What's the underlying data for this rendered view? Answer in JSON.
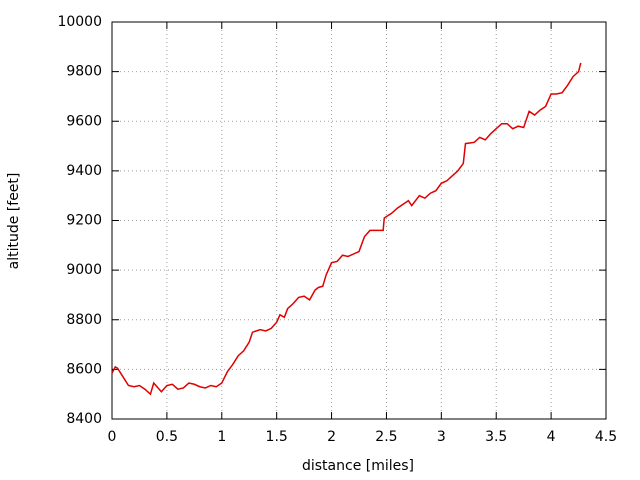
{
  "chart_data": {
    "type": "line",
    "x_label": "distance [miles]",
    "y_label": "altitude [feet]",
    "x": [
      0,
      0.03,
      0.05,
      0.1,
      0.15,
      0.2,
      0.25,
      0.3,
      0.35,
      0.38,
      0.4,
      0.45,
      0.5,
      0.55,
      0.6,
      0.65,
      0.7,
      0.75,
      0.8,
      0.85,
      0.9,
      0.95,
      1.0,
      1.05,
      1.1,
      1.15,
      1.2,
      1.25,
      1.28,
      1.35,
      1.4,
      1.45,
      1.5,
      1.53,
      1.57,
      1.6,
      1.65,
      1.7,
      1.75,
      1.8,
      1.85,
      1.88,
      1.92,
      1.95,
      2.0,
      2.05,
      2.1,
      2.15,
      2.2,
      2.25,
      2.3,
      2.35,
      2.4,
      2.47,
      2.48,
      2.55,
      2.6,
      2.65,
      2.7,
      2.73,
      2.8,
      2.85,
      2.9,
      2.95,
      3.0,
      3.05,
      3.1,
      3.15,
      3.2,
      3.22,
      3.3,
      3.35,
      3.4,
      3.45,
      3.5,
      3.55,
      3.6,
      3.65,
      3.7,
      3.75,
      3.8,
      3.85,
      3.9,
      3.95,
      4.0,
      4.05,
      4.1,
      4.15,
      4.2,
      4.25,
      4.27
    ],
    "series": [
      {
        "color": "#e00000",
        "values": [
          8585,
          8610,
          8605,
          8570,
          8535,
          8530,
          8535,
          8520,
          8500,
          8545,
          8535,
          8510,
          8535,
          8540,
          8520,
          8525,
          8545,
          8540,
          8530,
          8525,
          8535,
          8530,
          8545,
          8590,
          8620,
          8655,
          8675,
          8710,
          8750,
          8760,
          8755,
          8765,
          8790,
          8820,
          8810,
          8845,
          8865,
          8890,
          8895,
          8880,
          8920,
          8930,
          8935,
          8980,
          9030,
          9035,
          9060,
          9055,
          9065,
          9075,
          9135,
          9160,
          9160,
          9160,
          9210,
          9230,
          9250,
          9265,
          9280,
          9260,
          9300,
          9290,
          9310,
          9320,
          9350,
          9360,
          9380,
          9400,
          9430,
          9510,
          9515,
          9535,
          9525,
          9550,
          9570,
          9590,
          9590,
          9570,
          9580,
          9575,
          9640,
          9625,
          9645,
          9660,
          9710,
          9710,
          9715,
          9745,
          9780,
          9800,
          9835
        ]
      }
    ],
    "xlim": [
      0,
      4.5
    ],
    "xticks": [
      0,
      0.5,
      1,
      1.5,
      2,
      2.5,
      3,
      3.5,
      4,
      4.5
    ],
    "ylim": [
      8400,
      10000
    ],
    "yticks": [
      8400,
      8600,
      8800,
      9000,
      9200,
      9400,
      9600,
      9800,
      10000
    ],
    "grid": true
  }
}
